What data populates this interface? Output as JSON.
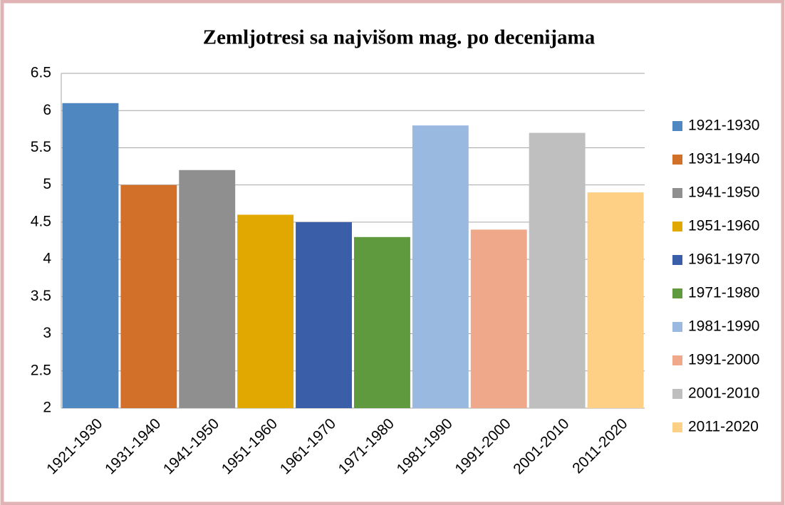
{
  "chart_data": {
    "type": "bar",
    "title": "Zemljotresi sa najvišom mag. po decenijama",
    "categories": [
      "1921-1930",
      "1931-1940",
      "1941-1950",
      "1951-1960",
      "1961-1970",
      "1971-1980",
      "1981-1990",
      "1991-2000",
      "2001-2010",
      "2011-2020"
    ],
    "values": [
      6.1,
      5.0,
      5.2,
      4.6,
      4.5,
      4.3,
      5.8,
      4.4,
      5.7,
      4.9
    ],
    "colors": [
      "#4f88c0",
      "#d2702a",
      "#8f8f8f",
      "#e0a800",
      "#3a5fa8",
      "#5f9a3e",
      "#9ab9e0",
      "#f0a88a",
      "#bfbfbf",
      "#fdd085"
    ],
    "ylim": [
      2,
      6.5
    ],
    "yticks": [
      2,
      2.5,
      3,
      3.5,
      4,
      4.5,
      5,
      5.5,
      6,
      6.5
    ],
    "grid": true,
    "legend": "right"
  }
}
